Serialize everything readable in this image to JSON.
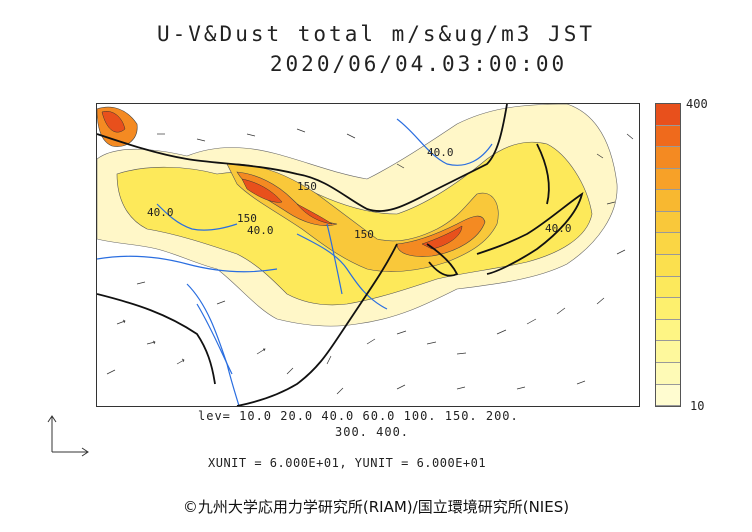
{
  "title": {
    "line1": "U-V&Dust total m/s&ug/m3 JST",
    "line2": "2020/06/04.03:00:00"
  },
  "colorbar": {
    "max_label": "400",
    "min_label": "10",
    "colors": [
      "#e8501c",
      "#ef6a1c",
      "#f48a22",
      "#f7a128",
      "#f8b830",
      "#f9c83a",
      "#fad644",
      "#fbe04e",
      "#fce95c",
      "#fdf06e",
      "#fef584",
      "#fef89c",
      "#fefab6",
      "#fffcd0"
    ]
  },
  "levels": {
    "line1": "lev= 10.0 20.0 40.0 60.0 100. 150. 200.",
    "line2": "300. 400."
  },
  "units": {
    "text": "XUNIT = 6.000E+01, YUNIT = 6.000E+01"
  },
  "copyright": {
    "text": "©九州大学応用力学研究所(RIAM)/国立環境研究所(NIES)"
  },
  "contour_labels": [
    {
      "text": "40.0"
    },
    {
      "text": "40.0"
    },
    {
      "text": "150"
    },
    {
      "text": "150"
    },
    {
      "text": "40.0"
    },
    {
      "text": "150"
    },
    {
      "text": "40.0"
    }
  ]
}
